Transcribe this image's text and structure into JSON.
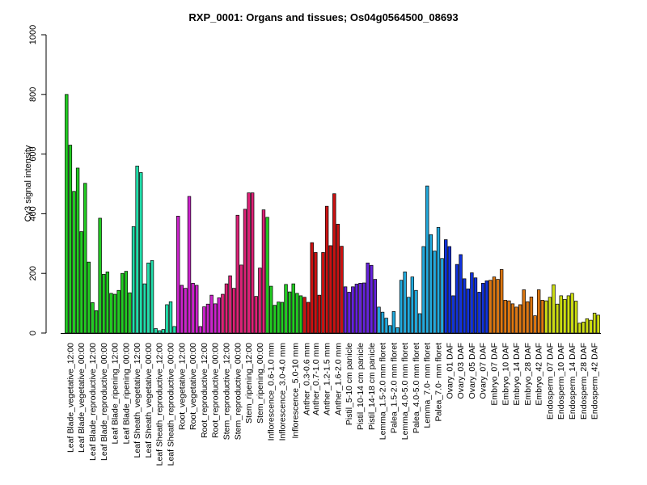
{
  "chart_data": {
    "type": "bar",
    "title": "RXP_0001: Organs and tissues; Os04g0564500_08693",
    "ylabel": "Cy3 signal intensity",
    "xlabel": "",
    "ylim": [
      0,
      1000
    ],
    "yticks": [
      0,
      200,
      400,
      600,
      800,
      1000
    ],
    "groups": [
      {
        "label": "Leaf Blade_vegetative_12:00",
        "color": "#22cc22",
        "values": [
          800,
          630,
          475
        ]
      },
      {
        "label": "Leaf Blade_vegetative_00:00",
        "color": "#22cc22",
        "values": [
          553,
          340,
          502
        ]
      },
      {
        "label": "Leaf Blade_reproductive_12:00",
        "color": "#22cc22",
        "values": [
          238,
          102,
          75
        ]
      },
      {
        "label": "Leaf Blade_reproductive_00:00",
        "color": "#22cc22",
        "values": [
          385,
          197,
          205
        ]
      },
      {
        "label": "Leaf Blade_ripening_12:00",
        "color": "#22cc22",
        "values": [
          133,
          130,
          143
        ]
      },
      {
        "label": "Leaf Blade_ripening_00:00",
        "color": "#22cc22",
        "values": [
          200,
          207,
          135
        ]
      },
      {
        "label": "Leaf Sheath_vegetative_12:00",
        "color": "#22ddaa",
        "values": [
          357,
          560,
          538
        ]
      },
      {
        "label": "Leaf Sheath_vegetative_00:00",
        "color": "#22ddaa",
        "values": [
          165,
          235,
          243
        ]
      },
      {
        "label": "Leaf Sheath_reproductive_12:00",
        "color": "#22ddaa",
        "values": [
          15,
          8,
          12
        ]
      },
      {
        "label": "Leaf Sheath_reproductive_00:00",
        "color": "#22ddaa",
        "values": [
          95,
          105,
          22
        ]
      },
      {
        "label": "Root_vegetative_12:00",
        "color": "#cc22cc",
        "values": [
          392,
          160,
          150
        ]
      },
      {
        "label": "Root_vegetative_00:00",
        "color": "#cc22cc",
        "values": [
          458,
          167,
          160
        ]
      },
      {
        "label": "Root_reproductive_12:00",
        "color": "#cc22cc",
        "values": [
          22,
          88,
          97
        ]
      },
      {
        "label": "Root_reproductive_00:00",
        "color": "#cc22cc",
        "values": [
          127,
          98,
          118
        ]
      },
      {
        "label": "Stem_reproductive_12:00",
        "color": "#dd2277",
        "values": [
          130,
          165,
          192
        ]
      },
      {
        "label": "Stem_reproductive_00:00",
        "color": "#dd2277",
        "values": [
          150,
          395,
          228
        ]
      },
      {
        "label": "Stem_ripening_12:00",
        "color": "#dd2277",
        "values": [
          415,
          470,
          470
        ]
      },
      {
        "label": "Stem_ripening_00:00",
        "color": "#dd2277",
        "values": [
          123,
          218,
          413
        ]
      },
      {
        "label": "Inflorescence_0.6-1.0 mm",
        "color": "#22cc22",
        "values": [
          388,
          157,
          93
        ]
      },
      {
        "label": "Inflorescence_3.0-4.0 mm",
        "color": "#22cc22",
        "values": [
          104,
          103,
          163
        ]
      },
      {
        "label": "Inflorescence_5.0-10 mm",
        "color": "#22cc22",
        "values": [
          138,
          165,
          133,
          125
        ]
      },
      {
        "label": "Anther_0.3-0.6 mm",
        "color": "#cc1111",
        "values": [
          120,
          103
        ]
      },
      {
        "label": "Anther_0.7-1.0 mm",
        "color": "#cc1111",
        "values": [
          303,
          270,
          127
        ]
      },
      {
        "label": "Anther_1.2-1.5 mm",
        "color": "#cc1111",
        "values": [
          270,
          425,
          293
        ]
      },
      {
        "label": "Anther_1.6-2.0 mm",
        "color": "#cc1111",
        "values": [
          467,
          365,
          291
        ]
      },
      {
        "label": "Pistil_5-10 cm panicle",
        "color": "#6622dd",
        "values": [
          155,
          137,
          155
        ]
      },
      {
        "label": "Pistil_10-14 cm panicle",
        "color": "#6622dd",
        "values": [
          164,
          167,
          168
        ]
      },
      {
        "label": "Pistil_14-18 cm panicle",
        "color": "#6622dd",
        "values": [
          235,
          227,
          180
        ]
      },
      {
        "label": "Lemma_1.5-2.0 mm floret",
        "color": "#22aadd",
        "values": [
          87,
          70,
          50
        ]
      },
      {
        "label": "Palea_1.5-2.0 mm floret",
        "color": "#22aadd",
        "values": [
          25,
          72,
          18
        ]
      },
      {
        "label": "Lemma_4.0-5.0 mm floret",
        "color": "#22aadd",
        "values": [
          177,
          205,
          120
        ]
      },
      {
        "label": "Palea_4.0-5.0 mm floret",
        "color": "#22aadd",
        "values": [
          188,
          143,
          65
        ]
      },
      {
        "label": "Lemma_7.0- mm floret",
        "color": "#22aadd",
        "values": [
          290,
          493,
          330
        ]
      },
      {
        "label": "Palea_7.0- mm floret",
        "color": "#22aadd",
        "values": [
          275,
          354,
          250
        ]
      },
      {
        "label": "Ovary_01 DAF",
        "color": "#1133dd",
        "values": [
          313,
          290,
          125
        ]
      },
      {
        "label": "Ovary_03 DAF",
        "color": "#1133dd",
        "values": [
          230,
          263,
          182
        ]
      },
      {
        "label": "Ovary_05 DAF",
        "color": "#1133dd",
        "values": [
          148,
          202,
          185
        ]
      },
      {
        "label": "Ovary_07 DAF",
        "color": "#1133dd",
        "values": [
          137,
          167,
          175
        ]
      },
      {
        "label": "Embryo_07 DAF",
        "color": "#dd7711",
        "values": [
          177,
          188,
          180
        ]
      },
      {
        "label": "Embryo_10 DAF",
        "color": "#dd7711",
        "values": [
          213,
          110,
          108
        ]
      },
      {
        "label": "Embryo_14 DAF",
        "color": "#dd7711",
        "values": [
          98,
          87,
          95
        ]
      },
      {
        "label": "Embryo_28 DAF",
        "color": "#dd7711",
        "values": [
          145,
          105,
          121
        ]
      },
      {
        "label": "Embryo_42 DAF",
        "color": "#dd7711",
        "values": [
          58,
          145,
          110
        ]
      },
      {
        "label": "Endosperm_07 DAF",
        "color": "#ccdd11",
        "values": [
          108,
          120,
          162
        ]
      },
      {
        "label": "Endosperm_10 DAF",
        "color": "#ccdd11",
        "values": [
          97,
          125,
          113
        ]
      },
      {
        "label": "Endosperm_14 DAF",
        "color": "#ccdd11",
        "values": [
          125,
          133,
          107
        ]
      },
      {
        "label": "Endosperm_28 DAF",
        "color": "#ccdd11",
        "values": [
          33,
          37,
          48
        ]
      },
      {
        "label": "Endosperm_42 DAF",
        "color": "#ccdd11",
        "values": [
          43,
          67,
          60
        ]
      }
    ]
  }
}
